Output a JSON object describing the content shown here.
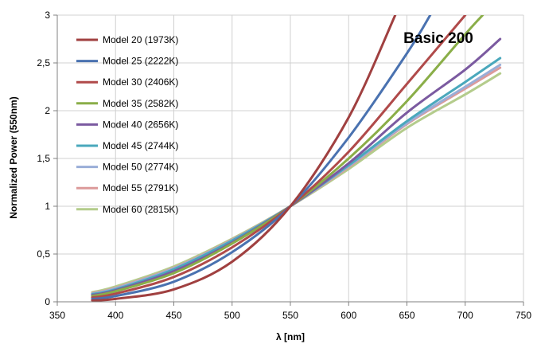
{
  "chart_data": {
    "type": "line",
    "title": "",
    "annotation": "Basic 200",
    "xlabel": "λ [nm]",
    "ylabel": "Normalized Power (550nm)",
    "xlim": [
      350,
      750
    ],
    "ylim": [
      0,
      3
    ],
    "x_ticks": [
      350,
      400,
      450,
      500,
      550,
      600,
      650,
      700,
      750
    ],
    "x_tick_labels": [
      "350",
      "400",
      "450",
      "500",
      "550",
      "600",
      "650",
      "700",
      "750"
    ],
    "y_ticks": [
      0,
      0.5,
      1,
      1.5,
      2,
      2.5,
      3
    ],
    "y_tick_labels": [
      "0",
      "0,5",
      "1",
      "1,5",
      "2",
      "2,5",
      "3"
    ],
    "grid": true,
    "legend_position": "left",
    "series": [
      {
        "name": "Model 20 (1973K)",
        "color": "#a04040",
        "x": [
          380,
          400,
          450,
          500,
          550,
          600,
          640
        ],
        "y": [
          0.015,
          0.03,
          0.13,
          0.42,
          1.0,
          1.93,
          3.0
        ]
      },
      {
        "name": "Model 25 (2222K)",
        "color": "#4a72b0",
        "x": [
          380,
          400,
          450,
          500,
          550,
          600,
          650,
          670
        ],
        "y": [
          0.03,
          0.06,
          0.21,
          0.52,
          1.0,
          1.72,
          2.6,
          3.0
        ]
      },
      {
        "name": "Model 30 (2406K)",
        "color": "#b04a4a",
        "x": [
          380,
          400,
          450,
          500,
          550,
          600,
          650,
          700
        ],
        "y": [
          0.045,
          0.085,
          0.26,
          0.57,
          1.0,
          1.57,
          2.28,
          3.0
        ]
      },
      {
        "name": "Model 35 (2582K)",
        "color": "#8aae48",
        "x": [
          380,
          400,
          450,
          500,
          550,
          600,
          650,
          700,
          715
        ],
        "y": [
          0.06,
          0.11,
          0.3,
          0.61,
          1.0,
          1.5,
          2.1,
          2.8,
          3.0
        ]
      },
      {
        "name": "Model 40 (2656K)",
        "color": "#7b5aa0",
        "x": [
          380,
          400,
          450,
          500,
          550,
          600,
          650,
          700,
          730
        ],
        "y": [
          0.07,
          0.12,
          0.32,
          0.62,
          1.0,
          1.45,
          1.98,
          2.43,
          2.75
        ]
      },
      {
        "name": "Model 45 (2744K)",
        "color": "#4aa8bc",
        "x": [
          380,
          400,
          450,
          500,
          550,
          600,
          650,
          700,
          730
        ],
        "y": [
          0.08,
          0.13,
          0.34,
          0.64,
          1.0,
          1.43,
          1.89,
          2.3,
          2.55
        ]
      },
      {
        "name": "Model 50 (2774K)",
        "color": "#9aaed8",
        "x": [
          380,
          400,
          450,
          500,
          550,
          600,
          650,
          700,
          730
        ],
        "y": [
          0.085,
          0.14,
          0.35,
          0.645,
          1.0,
          1.42,
          1.87,
          2.25,
          2.48
        ]
      },
      {
        "name": "Model 55 (2791K)",
        "color": "#dc9a9a",
        "x": [
          380,
          400,
          450,
          500,
          550,
          600,
          650,
          700,
          730
        ],
        "y": [
          0.09,
          0.145,
          0.355,
          0.65,
          1.0,
          1.41,
          1.86,
          2.23,
          2.45
        ]
      },
      {
        "name": "Model 60 (2815K)",
        "color": "#b4cc8c",
        "x": [
          380,
          400,
          450,
          500,
          550,
          600,
          650,
          700,
          730
        ],
        "y": [
          0.1,
          0.16,
          0.37,
          0.66,
          1.0,
          1.39,
          1.82,
          2.17,
          2.39
        ]
      }
    ]
  }
}
